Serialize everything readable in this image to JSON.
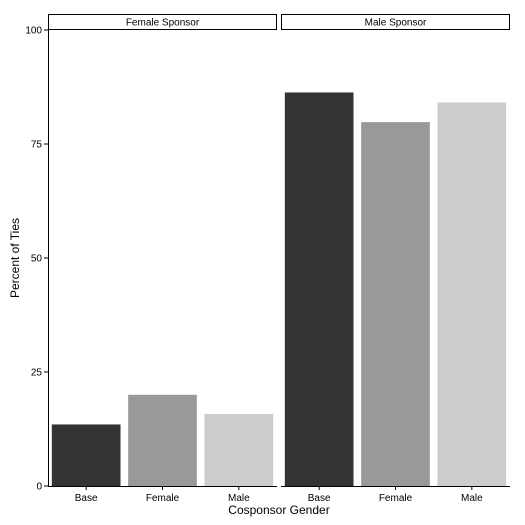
{
  "chart_data": {
    "type": "bar",
    "facets": [
      {
        "title": "Female Sponsor",
        "categories": [
          "Base",
          "Female",
          "Male"
        ],
        "values": [
          13.5,
          20,
          15.8
        ]
      },
      {
        "title": "Male Sponsor",
        "categories": [
          "Base",
          "Female",
          "Male"
        ],
        "values": [
          86.3,
          79.8,
          84.1
        ]
      }
    ],
    "bar_colors": [
      "#333333",
      "#999999",
      "#cccccc"
    ],
    "xlabel": "Cosponsor Gender",
    "ylabel": "Percent of Ties",
    "ylim": [
      0,
      100
    ],
    "yticks": [
      0,
      25,
      50,
      75,
      100
    ],
    "grid": false,
    "legend": "none"
  }
}
